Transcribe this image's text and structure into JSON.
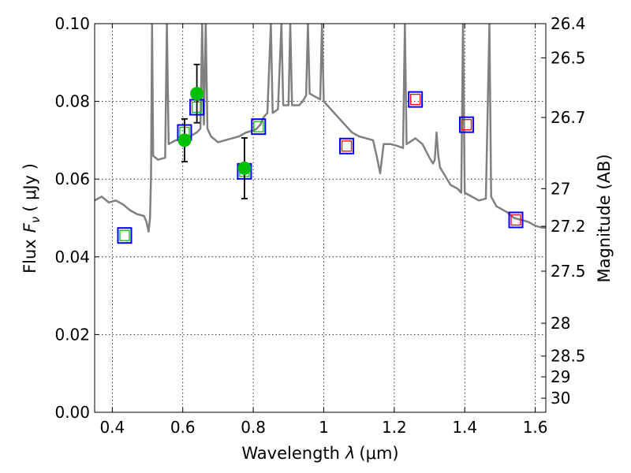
{
  "chart_data": {
    "type": "scatter",
    "xlabel": "Wavelength",
    "xlabel_symbol": "λ",
    "xlabel_unit": "(μm)",
    "ylabel": "Flux",
    "ylabel_symbol": "F",
    "ylabel_subscript": "ν",
    "ylabel_unit": "( μJy )",
    "y2label": "Magnitude (AB)",
    "xlim": [
      0.35,
      1.63
    ],
    "ylim": [
      0.0,
      0.1
    ],
    "grid": true,
    "x_ticks": [
      {
        "value": 0.4,
        "label": "0.4"
      },
      {
        "value": 0.6,
        "label": "0.6"
      },
      {
        "value": 0.8,
        "label": "0.8"
      },
      {
        "value": 1.0,
        "label": "1"
      },
      {
        "value": 1.2,
        "label": "1.2"
      },
      {
        "value": 1.4,
        "label": "1.4"
      },
      {
        "value": 1.6,
        "label": "1.6"
      }
    ],
    "y_ticks": [
      {
        "value": 0.0,
        "label": "0.00"
      },
      {
        "value": 0.02,
        "label": "0.02"
      },
      {
        "value": 0.04,
        "label": "0.04"
      },
      {
        "value": 0.06,
        "label": "0.06"
      },
      {
        "value": 0.08,
        "label": "0.08"
      },
      {
        "value": 0.1,
        "label": "0.10"
      }
    ],
    "magnitude_ticks": [
      {
        "mag": 26.4,
        "label": "26.4"
      },
      {
        "mag": 26.5,
        "label": "26.5"
      },
      {
        "mag": 26.7,
        "label": "26.7"
      },
      {
        "mag": 27.0,
        "label": "27"
      },
      {
        "mag": 27.2,
        "label": "27.2"
      },
      {
        "mag": 27.5,
        "label": "27.5"
      },
      {
        "mag": 28.0,
        "label": "28"
      },
      {
        "mag": 28.5,
        "label": "28.5"
      },
      {
        "mag": 29.0,
        "label": "29"
      },
      {
        "mag": 30.0,
        "label": "30"
      }
    ],
    "colors": {
      "sed": "#808080",
      "observed": "#00c000",
      "model_box": "#0000ff",
      "model_inner_green": "#00c000",
      "model_inner_red": "#ff0000",
      "errorbar": "#000000"
    },
    "series": [
      {
        "name": "model SED",
        "kind": "line",
        "points": [
          [
            0.35,
            0.0545
          ],
          [
            0.37,
            0.0555
          ],
          [
            0.39,
            0.054
          ],
          [
            0.41,
            0.0545
          ],
          [
            0.43,
            0.0535
          ],
          [
            0.45,
            0.052
          ],
          [
            0.47,
            0.051
          ],
          [
            0.49,
            0.0505
          ],
          [
            0.497,
            0.049
          ],
          [
            0.503,
            0.0465
          ],
          [
            0.507,
            0.05
          ],
          [
            0.51,
            0.061
          ],
          [
            0.513,
            0.1
          ],
          [
            0.516,
            0.066
          ],
          [
            0.53,
            0.065
          ],
          [
            0.55,
            0.0655
          ],
          [
            0.555,
            0.1
          ],
          [
            0.56,
            0.069
          ],
          [
            0.58,
            0.07
          ],
          [
            0.6,
            0.07
          ],
          [
            0.62,
            0.071
          ],
          [
            0.64,
            0.072
          ],
          [
            0.65,
            0.073
          ],
          [
            0.655,
            0.1
          ],
          [
            0.66,
            0.074
          ],
          [
            0.665,
            0.1
          ],
          [
            0.67,
            0.073
          ],
          [
            0.68,
            0.071
          ],
          [
            0.7,
            0.0695
          ],
          [
            0.72,
            0.07
          ],
          [
            0.74,
            0.0705
          ],
          [
            0.76,
            0.071
          ],
          [
            0.78,
            0.072
          ],
          [
            0.8,
            0.0725
          ],
          [
            0.81,
            0.073
          ],
          [
            0.82,
            0.074
          ],
          [
            0.83,
            0.076
          ],
          [
            0.84,
            0.077
          ],
          [
            0.85,
            0.1
          ],
          [
            0.855,
            0.077
          ],
          [
            0.87,
            0.078
          ],
          [
            0.88,
            0.1
          ],
          [
            0.885,
            0.079
          ],
          [
            0.9,
            0.079
          ],
          [
            0.905,
            0.1
          ],
          [
            0.91,
            0.079
          ],
          [
            0.93,
            0.079
          ],
          [
            0.94,
            0.08
          ],
          [
            0.95,
            0.0815
          ],
          [
            0.955,
            0.1
          ],
          [
            0.96,
            0.082
          ],
          [
            0.98,
            0.081
          ],
          [
            0.99,
            0.0805
          ],
          [
            0.995,
            0.1
          ],
          [
            1.0,
            0.08
          ],
          [
            1.02,
            0.078
          ],
          [
            1.04,
            0.076
          ],
          [
            1.06,
            0.074
          ],
          [
            1.08,
            0.072
          ],
          [
            1.1,
            0.071
          ],
          [
            1.12,
            0.0705
          ],
          [
            1.14,
            0.07
          ],
          [
            1.15,
            0.066
          ],
          [
            1.16,
            0.0615
          ],
          [
            1.17,
            0.069
          ],
          [
            1.19,
            0.069
          ],
          [
            1.21,
            0.0685
          ],
          [
            1.225,
            0.068
          ],
          [
            1.23,
            0.1
          ],
          [
            1.235,
            0.069
          ],
          [
            1.26,
            0.0705
          ],
          [
            1.28,
            0.069
          ],
          [
            1.3,
            0.0655
          ],
          [
            1.31,
            0.064
          ],
          [
            1.315,
            0.065
          ],
          [
            1.32,
            0.072
          ],
          [
            1.325,
            0.066
          ],
          [
            1.33,
            0.063
          ],
          [
            1.36,
            0.0585
          ],
          [
            1.38,
            0.0575
          ],
          [
            1.39,
            0.0565
          ],
          [
            1.395,
            0.1
          ],
          [
            1.4,
            0.0565
          ],
          [
            1.42,
            0.0555
          ],
          [
            1.44,
            0.0545
          ],
          [
            1.46,
            0.055
          ],
          [
            1.47,
            0.1
          ],
          [
            1.475,
            0.0555
          ],
          [
            1.49,
            0.053
          ],
          [
            1.5,
            0.0525
          ],
          [
            1.52,
            0.0515
          ],
          [
            1.54,
            0.05
          ],
          [
            1.56,
            0.0495
          ],
          [
            1.58,
            0.049
          ],
          [
            1.6,
            0.048
          ],
          [
            1.62,
            0.0475
          ],
          [
            1.63,
            0.0475
          ]
        ]
      },
      {
        "name": "model photometry (optical)",
        "kind": "square",
        "inner": "green",
        "points": [
          [
            0.435,
            0.0455
          ],
          [
            0.605,
            0.072
          ],
          [
            0.64,
            0.0785
          ],
          [
            0.775,
            0.062
          ],
          [
            0.815,
            0.0735
          ]
        ]
      },
      {
        "name": "model photometry (NIR)",
        "kind": "square",
        "inner": "red",
        "points": [
          [
            1.065,
            0.0685
          ],
          [
            1.26,
            0.0805
          ],
          [
            1.405,
            0.074
          ],
          [
            1.545,
            0.0495
          ]
        ]
      },
      {
        "name": "observed photometry",
        "kind": "point",
        "points": [
          {
            "x": 0.605,
            "y": 0.07,
            "err": 0.0055
          },
          {
            "x": 0.64,
            "y": 0.082,
            "err": 0.0075
          },
          {
            "x": 0.775,
            "y": 0.0628,
            "err": 0.0078
          }
        ]
      }
    ]
  }
}
